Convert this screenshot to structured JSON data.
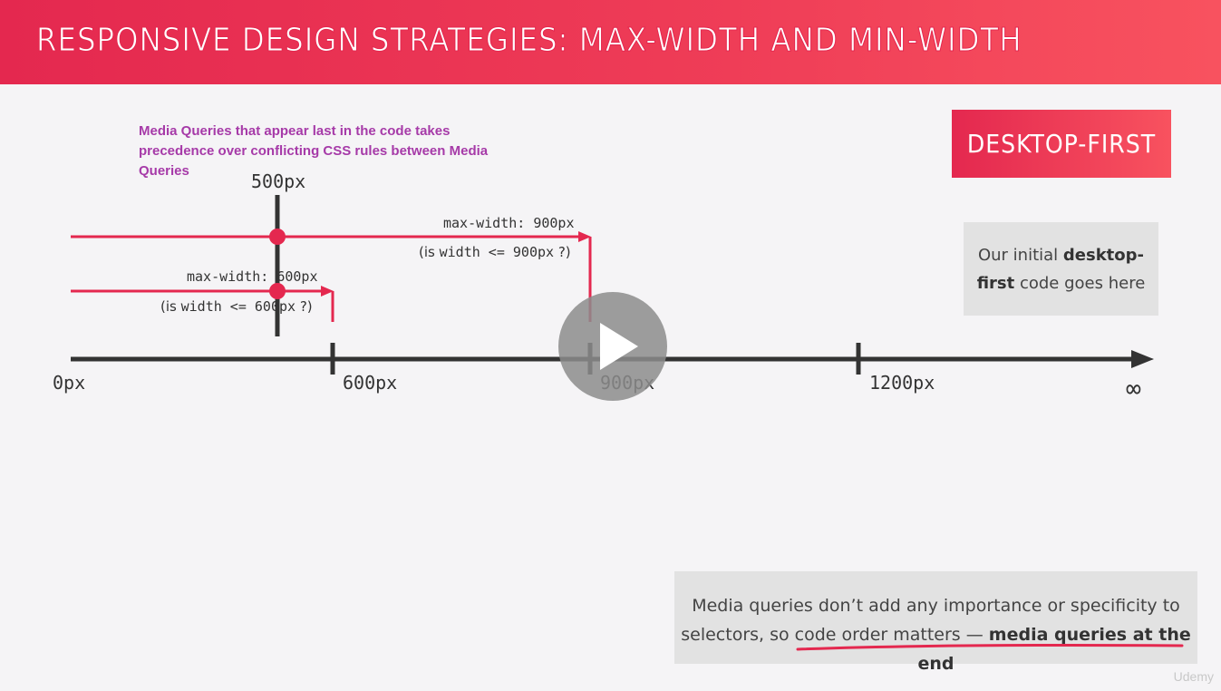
{
  "header": {
    "title": "Responsive Design Strategies: Max-Width and Min-Width"
  },
  "note": {
    "text": "Media Queries that appear last in the code takes precedence over conflicting CSS rules between Media Queries"
  },
  "badge": {
    "label": "Desktop-First"
  },
  "info_box": {
    "pre": "Our initial ",
    "bold": "desktop-first",
    "post": " code goes here"
  },
  "diagram": {
    "breakpoint_label": "500px",
    "query_900": "max-width: 900px",
    "question_900_pre": "(is",
    "question_900_mid": "width <= 900px",
    "question_900_post": "?)",
    "query_600": "max-width: 600px",
    "question_600_pre": "(is",
    "question_600_mid": "width <= 600px",
    "question_600_post": "?)",
    "axis_labels": [
      "0px",
      "600px",
      "900px",
      "1200px",
      "∞"
    ]
  },
  "bottom_box": {
    "line1": "Media queries don’t add any importance or specificity to",
    "line2_pre": "selectors, so code order matters — ",
    "line2_bold": "media queries at the end"
  },
  "colors": {
    "accent": "#e4284f",
    "axis": "#333333",
    "note": "#a63aa8"
  },
  "watermark": "Udemy",
  "player": {
    "play_icon": "play-icon"
  }
}
